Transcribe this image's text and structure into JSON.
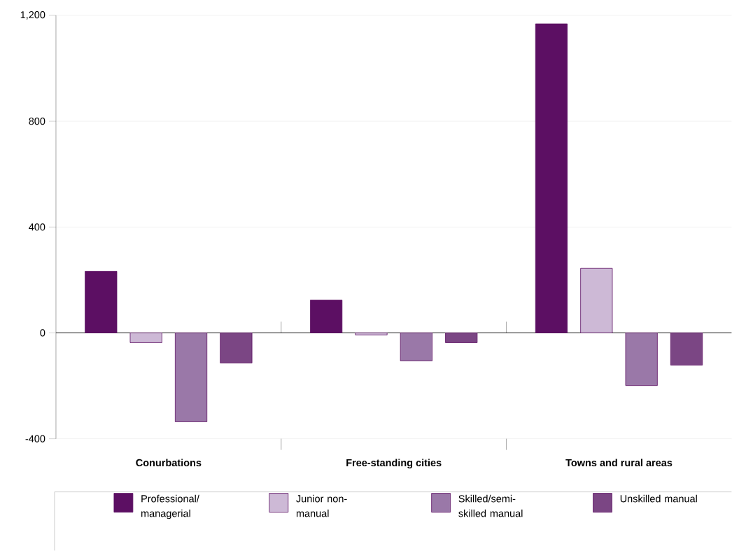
{
  "chart_data": {
    "type": "bar",
    "categories": [
      "Conurbations",
      "Free-standing cities",
      "Towns and rural areas"
    ],
    "series": [
      {
        "name": "Professional/ managerial",
        "color": "#5c0f63",
        "values": [
          233,
          124,
          1168
        ]
      },
      {
        "name": "Junior non-manual",
        "color": "#cdb9d6",
        "values": [
          -37,
          -8,
          244
        ]
      },
      {
        "name": "Skilled/semi-skilled manual",
        "color": "#9a78a8",
        "values": [
          -336,
          -106,
          -199
        ]
      },
      {
        "name": "Unskilled manual",
        "color": "#7b4684",
        "values": [
          -114,
          -37,
          -122
        ]
      }
    ],
    "ylim": [
      -400,
      1200
    ],
    "yticks": [
      -400,
      0,
      400,
      800,
      {
        "value": 1200,
        "label": "1,200"
      }
    ],
    "grid": "y",
    "legend": "bottom"
  }
}
